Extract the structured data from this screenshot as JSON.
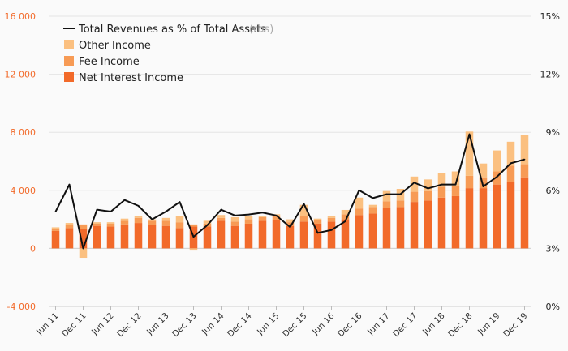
{
  "chart_data": {
    "type": "bar",
    "title": "",
    "xlabel": "",
    "ylabel": "",
    "ylim": [
      -4000,
      16000
    ],
    "ylim_right": [
      0,
      15
    ],
    "left_ticks": [
      "16 000",
      "12 000",
      "8 000",
      "4 000",
      "0",
      "-4 000"
    ],
    "right_ticks": [
      "15%",
      "12%",
      "9%",
      "6%",
      "3%",
      "0%"
    ],
    "x_tick_labels": [
      "Jun 11",
      "Dec 11",
      "Jun 12",
      "Dec 12",
      "Jun 13",
      "Dec 13",
      "Jun 14",
      "Dec 14",
      "Jun 15",
      "Dec 15",
      "Jun 16",
      "Dec 16",
      "Jun 17",
      "Dec 17",
      "Jun 18",
      "Dec 18",
      "Jun 19",
      "Dec 19"
    ],
    "categories": [
      "Jun 11",
      "Sep 11",
      "Dec 11",
      "Mar 12",
      "Jun 12",
      "Sep 12",
      "Dec 12",
      "Mar 13",
      "Jun 13",
      "Sep 13",
      "Dec 13",
      "Mar 14",
      "Jun 14",
      "Sep 14",
      "Dec 14",
      "Mar 15",
      "Jun 15",
      "Sep 15",
      "Dec 15",
      "Mar 16",
      "Jun 16",
      "Sep 16",
      "Dec 16",
      "Mar 17",
      "Jun 17",
      "Sep 17",
      "Dec 17",
      "Mar 18",
      "Jun 18",
      "Sep 18",
      "Dec 18",
      "Mar 19",
      "Jun 19",
      "Sep 19",
      "Dec 19"
    ],
    "legend": {
      "placement": "top-left",
      "line_label": "Total Revenues as % of Total Assets",
      "line_suffix": "(rhs)",
      "other_label": "Other Income",
      "fee_label": "Fee Income",
      "nii_label": "Net Interest Income"
    },
    "series": [
      {
        "name": "Net Interest Income",
        "type": "bar",
        "color": "#f26a2a",
        "values": [
          1200,
          1400,
          1350,
          1550,
          1500,
          1650,
          1750,
          1600,
          1550,
          1400,
          1500,
          1500,
          1900,
          1550,
          1700,
          1900,
          1950,
          1550,
          1850,
          1700,
          1850,
          2000,
          2300,
          2400,
          2800,
          2850,
          3200,
          3300,
          3500,
          3600,
          4150,
          4150,
          4400,
          4600,
          4900
        ]
      },
      {
        "name": "Fee Income",
        "type": "bar",
        "color": "#f79b55",
        "values": [
          150,
          200,
          300,
          150,
          200,
          250,
          350,
          300,
          350,
          400,
          150,
          200,
          200,
          300,
          300,
          250,
          300,
          250,
          350,
          250,
          250,
          350,
          450,
          450,
          450,
          450,
          700,
          650,
          750,
          700,
          850,
          750,
          900,
          1100,
          900
        ]
      },
      {
        "name": "Other Income",
        "type": "bar",
        "color": "#fbc080",
        "values": [
          100,
          150,
          -650,
          100,
          100,
          150,
          150,
          100,
          200,
          450,
          -150,
          200,
          200,
          300,
          200,
          100,
          100,
          200,
          800,
          100,
          100,
          300,
          750,
          150,
          700,
          800,
          1050,
          800,
          950,
          1000,
          3050,
          950,
          1450,
          1650,
          2000
        ]
      },
      {
        "name": "Total Revenues as % of Total Assets",
        "type": "line",
        "axis": "right",
        "color": "#111",
        "values": [
          4.9,
          6.3,
          3.0,
          5.0,
          4.9,
          5.5,
          5.2,
          4.5,
          4.9,
          5.4,
          3.6,
          4.2,
          5.0,
          4.7,
          4.75,
          4.85,
          4.7,
          4.1,
          5.3,
          3.8,
          3.95,
          4.4,
          6.0,
          5.6,
          5.8,
          5.8,
          6.4,
          6.1,
          6.3,
          6.3,
          8.9,
          6.2,
          6.7,
          7.4,
          7.6
        ]
      }
    ]
  }
}
